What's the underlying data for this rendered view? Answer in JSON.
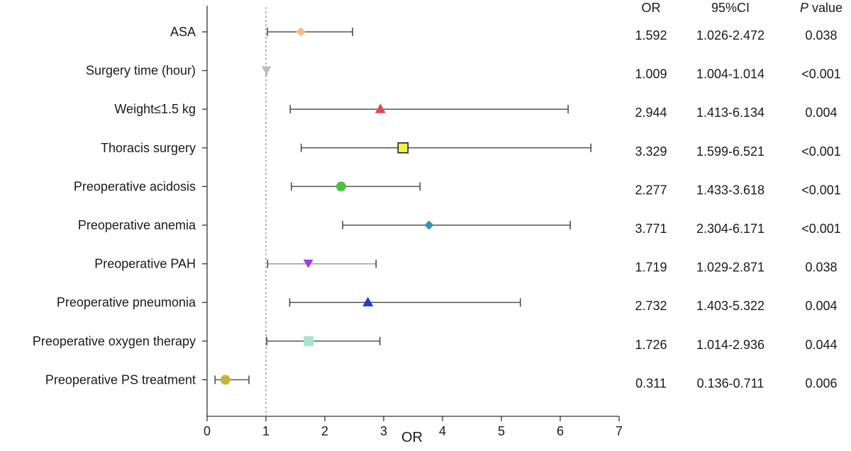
{
  "chart_data": {
    "type": "forest",
    "xlabel": "OR",
    "xlim": [
      0,
      7
    ],
    "xticks": [
      0,
      1,
      2,
      3,
      4,
      5,
      6,
      7
    ],
    "reference_line": 1,
    "table_headers": {
      "or": "OR",
      "ci": "95%CI",
      "p_italic": "P",
      "p_rest": " value"
    },
    "rows": [
      {
        "label": "ASA",
        "or": 1.592,
        "lo": 1.026,
        "hi": 2.472,
        "or_text": "1.592",
        "ci_text": "1.026-2.472",
        "p_text": "0.038",
        "marker": "diamond",
        "color": "#f5b98a"
      },
      {
        "label": "Surgery time (hour)",
        "or": 1.009,
        "lo": 1.004,
        "hi": 1.014,
        "or_text": "1.009",
        "ci_text": "1.004-1.014",
        "p_text": "<0.001",
        "marker": "triangle-down",
        "color": "#bdbdbd"
      },
      {
        "label": "Weight≤1.5 kg",
        "or": 2.944,
        "lo": 1.413,
        "hi": 6.134,
        "or_text": "2.944",
        "ci_text": "1.413-6.134",
        "p_text": "0.004",
        "marker": "triangle-up",
        "color": "#e0474c"
      },
      {
        "label": "Thoracis surgery",
        "or": 3.329,
        "lo": 1.599,
        "hi": 6.521,
        "or_text": "3.329",
        "ci_text": "1.599-6.521",
        "p_text": "<0.001",
        "marker": "square",
        "color": "#f2ef4a"
      },
      {
        "label": "Preoperative acidosis",
        "or": 2.277,
        "lo": 1.433,
        "hi": 3.618,
        "or_text": "2.277",
        "ci_text": "1.433-3.618",
        "p_text": "<0.001",
        "marker": "circle",
        "color": "#4cc13f"
      },
      {
        "label": "Preoperative anemia",
        "or": 3.771,
        "lo": 2.304,
        "hi": 6.171,
        "or_text": "3.771",
        "ci_text": "2.304-6.171",
        "p_text": "<0.001",
        "marker": "diamond",
        "color": "#3b8fb0"
      },
      {
        "label": "Preoperative PAH",
        "or": 1.719,
        "lo": 1.029,
        "hi": 2.871,
        "or_text": "1.719",
        "ci_text": "1.029-2.871",
        "p_text": "0.038",
        "marker": "triangle-down",
        "color": "#a03ce0"
      },
      {
        "label": "Preoperative pneumonia",
        "or": 2.732,
        "lo": 1.403,
        "hi": 5.322,
        "or_text": "2.732",
        "ci_text": "1.403-5.322",
        "p_text": "0.004",
        "marker": "triangle-up",
        "color": "#1f3bd1"
      },
      {
        "label": "Preoperative oxygen therapy",
        "or": 1.726,
        "lo": 1.014,
        "hi": 2.936,
        "or_text": "1.726",
        "ci_text": "1.014-2.936",
        "p_text": "0.044",
        "marker": "square",
        "color": "#a9e3c9"
      },
      {
        "label": "Preoperative PS treatment",
        "or": 0.311,
        "lo": 0.136,
        "hi": 0.711,
        "or_text": "0.311",
        "ci_text": "0.136-0.711",
        "p_text": "0.006",
        "marker": "circle",
        "color": "#c4b43c"
      }
    ]
  }
}
